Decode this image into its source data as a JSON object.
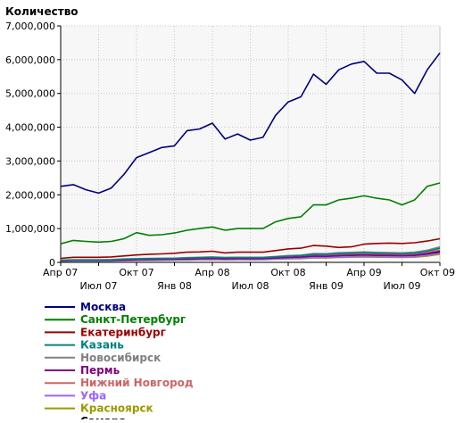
{
  "chart_data": {
    "type": "line",
    "ylabel": "Количество",
    "ylim": [
      0,
      7000000
    ],
    "y_ticks": [
      {
        "value": 0,
        "label": "0"
      },
      {
        "value": 1000000,
        "label": "1,000,000"
      },
      {
        "value": 2000000,
        "label": "2,000,000"
      },
      {
        "value": 3000000,
        "label": "3,000,000"
      },
      {
        "value": 4000000,
        "label": "4,000,000"
      },
      {
        "value": 5000000,
        "label": "5,000,000"
      },
      {
        "value": 6000000,
        "label": "6,000,000"
      },
      {
        "value": 7000000,
        "label": "7,000,000"
      }
    ],
    "x": [
      "2007-04",
      "2007-05",
      "2007-06",
      "2007-07",
      "2007-08",
      "2007-09",
      "2007-10",
      "2007-11",
      "2007-12",
      "2008-01",
      "2008-02",
      "2008-03",
      "2008-04",
      "2008-05",
      "2008-06",
      "2008-07",
      "2008-08",
      "2008-09",
      "2008-10",
      "2008-11",
      "2008-12",
      "2009-01",
      "2009-02",
      "2009-03",
      "2009-04",
      "2009-05",
      "2009-06",
      "2009-07",
      "2009-08",
      "2009-09",
      "2009-10"
    ],
    "x_ticks": [
      {
        "index": 0,
        "label": "Апр 07",
        "row": 0
      },
      {
        "index": 3,
        "label": "Июл 07",
        "row": 1
      },
      {
        "index": 6,
        "label": "Окт 07",
        "row": 0
      },
      {
        "index": 9,
        "label": "Янв 08",
        "row": 1
      },
      {
        "index": 12,
        "label": "Апр 08",
        "row": 0
      },
      {
        "index": 15,
        "label": "Июл 08",
        "row": 1
      },
      {
        "index": 18,
        "label": "Окт 08",
        "row": 0
      },
      {
        "index": 21,
        "label": "Янв 09",
        "row": 1
      },
      {
        "index": 24,
        "label": "Апр 09",
        "row": 0
      },
      {
        "index": 27,
        "label": "Июл 09",
        "row": 1
      },
      {
        "index": 30,
        "label": "Окт 09",
        "row": 0
      }
    ],
    "grid": true,
    "legend": "bottom",
    "series": [
      {
        "name": "Москва",
        "color": "#00007f",
        "values": [
          2250000,
          2300000,
          2150000,
          2050000,
          2200000,
          2600000,
          3100000,
          3250000,
          3400000,
          3450000,
          3900000,
          3950000,
          4120000,
          3650000,
          3800000,
          3620000,
          3700000,
          4350000,
          4750000,
          4900000,
          5570000,
          5270000,
          5700000,
          5870000,
          5950000,
          5600000,
          5600000,
          5400000,
          5000000,
          5700000,
          6200000
        ]
      },
      {
        "name": "Санкт-Петербург",
        "color": "#008000",
        "values": [
          550000,
          650000,
          620000,
          600000,
          620000,
          700000,
          880000,
          800000,
          820000,
          870000,
          950000,
          1000000,
          1050000,
          950000,
          1000000,
          1000000,
          1000000,
          1200000,
          1300000,
          1350000,
          1700000,
          1700000,
          1850000,
          1900000,
          1970000,
          1900000,
          1850000,
          1700000,
          1850000,
          2250000,
          2350000
        ]
      },
      {
        "name": "Екатеринбург",
        "color": "#990000",
        "values": [
          120000,
          150000,
          150000,
          150000,
          160000,
          190000,
          220000,
          240000,
          250000,
          270000,
          300000,
          310000,
          330000,
          280000,
          300000,
          300000,
          300000,
          350000,
          400000,
          420000,
          500000,
          480000,
          440000,
          460000,
          540000,
          560000,
          570000,
          560000,
          580000,
          630000,
          700000
        ]
      },
      {
        "name": "Казань",
        "color": "#008080",
        "values": [
          60000,
          70000,
          70000,
          70000,
          75000,
          90000,
          100000,
          110000,
          115000,
          120000,
          130000,
          140000,
          150000,
          140000,
          145000,
          140000,
          140000,
          165000,
          185000,
          200000,
          240000,
          235000,
          260000,
          270000,
          285000,
          270000,
          265000,
          260000,
          270000,
          330000,
          420000
        ]
      },
      {
        "name": "Новосибирск",
        "color": "#808080",
        "values": [
          70000,
          80000,
          80000,
          80000,
          85000,
          100000,
          110000,
          115000,
          120000,
          125000,
          140000,
          150000,
          160000,
          145000,
          150000,
          150000,
          150000,
          175000,
          200000,
          215000,
          260000,
          255000,
          285000,
          295000,
          310000,
          295000,
          290000,
          280000,
          300000,
          360000,
          460000
        ]
      },
      {
        "name": "Пермь",
        "color": "#800080",
        "values": [
          50000,
          60000,
          60000,
          60000,
          60000,
          70000,
          80000,
          85000,
          90000,
          95000,
          100000,
          110000,
          115000,
          105000,
          110000,
          110000,
          110000,
          130000,
          145000,
          155000,
          185000,
          180000,
          200000,
          210000,
          220000,
          210000,
          205000,
          200000,
          210000,
          260000,
          330000
        ]
      },
      {
        "name": "Нижний Новгород",
        "color": "#cc6666",
        "values": [
          60000,
          65000,
          65000,
          65000,
          70000,
          80000,
          90000,
          95000,
          100000,
          105000,
          115000,
          125000,
          130000,
          120000,
          125000,
          125000,
          125000,
          145000,
          165000,
          175000,
          210000,
          205000,
          225000,
          235000,
          250000,
          240000,
          235000,
          225000,
          240000,
          290000,
          370000
        ]
      },
      {
        "name": "Уфа",
        "color": "#9966ff",
        "values": [
          40000,
          45000,
          45000,
          45000,
          48000,
          55000,
          62000,
          66000,
          70000,
          73000,
          80000,
          86000,
          92000,
          85000,
          88000,
          87000,
          88000,
          103000,
          116000,
          124000,
          150000,
          146000,
          162000,
          170000,
          180000,
          172000,
          168000,
          163000,
          172000,
          212000,
          270000
        ]
      },
      {
        "name": "Красноярск",
        "color": "#999900",
        "values": [
          35000,
          40000,
          40000,
          40000,
          42000,
          48000,
          55000,
          58000,
          62000,
          65000,
          70000,
          76000,
          82000,
          75000,
          78000,
          77000,
          78000,
          92000,
          104000,
          111000,
          134000,
          130000,
          145000,
          152000,
          160000,
          154000,
          150000,
          145000,
          153000,
          188000,
          240000
        ]
      },
      {
        "name": "Самара",
        "color": "#000000",
        "values": [
          45000,
          50000,
          50000,
          50000,
          53000,
          61000,
          69000,
          73000,
          77000,
          81000,
          89000,
          96000,
          103000,
          94000,
          98000,
          97000,
          98000,
          115000,
          130000,
          139000,
          167000,
          163000,
          181000,
          190000,
          200000,
          192000,
          187000,
          181000,
          191000,
          235000,
          300000
        ]
      }
    ]
  }
}
